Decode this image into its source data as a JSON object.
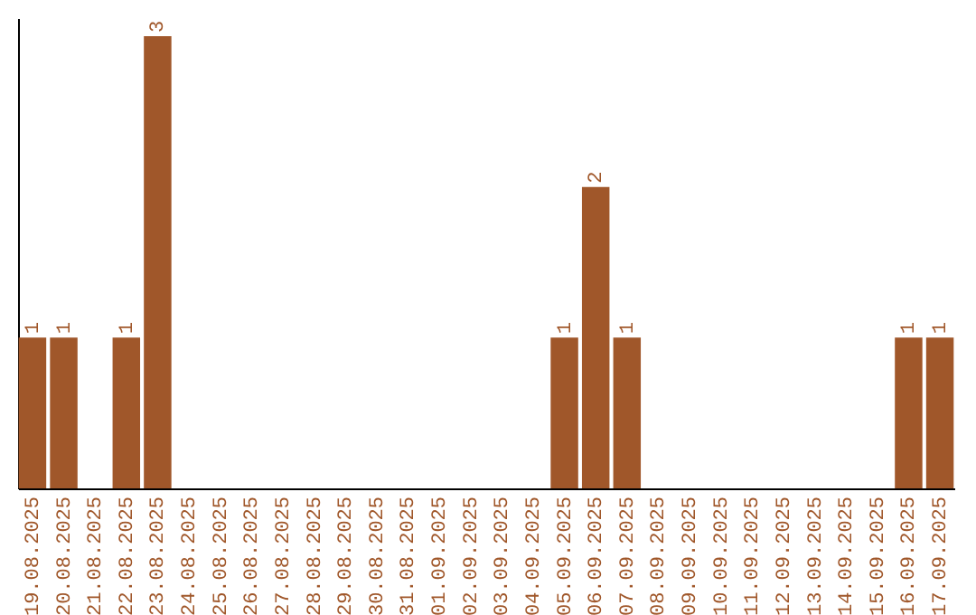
{
  "chart_data": {
    "type": "bar",
    "categories": [
      "19.08.2025",
      "20.08.2025",
      "21.08.2025",
      "22.08.2025",
      "23.08.2025",
      "24.08.2025",
      "25.08.2025",
      "26.08.2025",
      "27.08.2025",
      "28.08.2025",
      "29.08.2025",
      "30.08.2025",
      "31.08.2025",
      "01.09.2025",
      "02.09.2025",
      "03.09.2025",
      "04.09.2025",
      "05.09.2025",
      "06.09.2025",
      "07.09.2025",
      "08.09.2025",
      "09.09.2025",
      "10.09.2025",
      "11.09.2025",
      "12.09.2025",
      "13.09.2025",
      "14.09.2025",
      "15.09.2025",
      "16.09.2025",
      "17.09.2025"
    ],
    "values": [
      1,
      1,
      0,
      1,
      3,
      0,
      0,
      0,
      0,
      0,
      0,
      0,
      0,
      0,
      0,
      0,
      0,
      1,
      2,
      1,
      0,
      0,
      0,
      0,
      0,
      0,
      0,
      0,
      1,
      1
    ],
    "value_labels": [
      "1",
      "1",
      null,
      "1",
      "3",
      null,
      null,
      null,
      null,
      null,
      null,
      null,
      null,
      null,
      null,
      null,
      null,
      "1",
      "2",
      "1",
      null,
      null,
      null,
      null,
      null,
      null,
      null,
      null,
      "1",
      "1"
    ],
    "color": "#a0572a",
    "ylim": [
      0,
      3.12
    ],
    "tick_labels": "x",
    "grid": false,
    "legend": false
  }
}
